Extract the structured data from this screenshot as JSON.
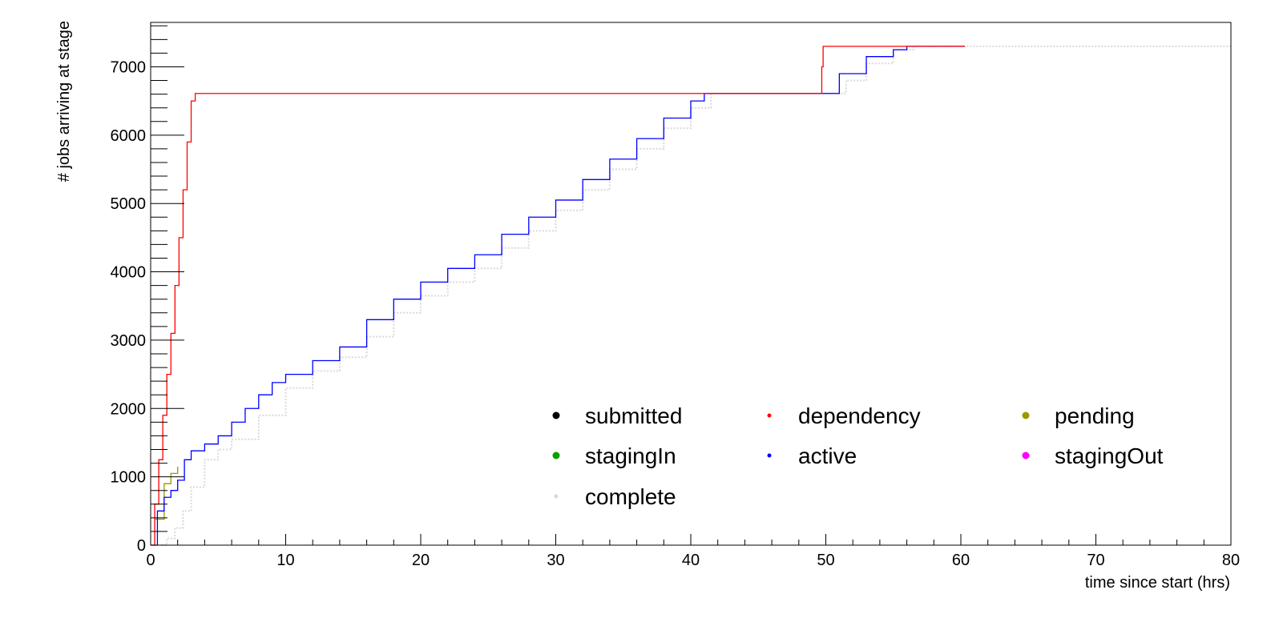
{
  "chart_data": {
    "type": "line",
    "title": "",
    "xlabel": "time since start (hrs)",
    "ylabel": "# jobs arriving at stage",
    "xlim": [
      0,
      80
    ],
    "ylim": [
      0,
      7650
    ],
    "x_ticks": [
      0,
      10,
      20,
      30,
      40,
      50,
      60,
      70,
      80
    ],
    "y_ticks": [
      0,
      1000,
      2000,
      3000,
      4000,
      5000,
      6000,
      7000
    ],
    "grid": false,
    "legend_position": "bottom-right inside plot, 3 columns",
    "series": [
      {
        "name": "submitted",
        "color": "#000000",
        "marker": "dot",
        "x": [],
        "y": []
      },
      {
        "name": "dependency",
        "color": "#ff0000",
        "marker": "dot",
        "x": [
          0,
          0.3,
          0.6,
          0.9,
          1.2,
          1.5,
          1.8,
          2.1,
          2.4,
          2.7,
          3.0,
          3.3,
          49.4,
          49.7,
          49.8,
          60.3
        ],
        "y": [
          0,
          600,
          1250,
          1900,
          2500,
          3100,
          3800,
          4500,
          5200,
          5900,
          6500,
          6610,
          6610,
          7000,
          7300,
          7300
        ]
      },
      {
        "name": "pending",
        "color": "#999900",
        "marker": "dot",
        "x": [
          0.3,
          1.0,
          1.5,
          2.0
        ],
        "y": [
          380,
          900,
          1050,
          1150
        ]
      },
      {
        "name": "stagingIn",
        "color": "#00a000",
        "marker": "dot",
        "x": [],
        "y": []
      },
      {
        "name": "active",
        "color": "#0000ff",
        "marker": "dot",
        "x": [
          0,
          0.5,
          1.0,
          1.5,
          2.0,
          2.5,
          3.0,
          4.0,
          5.0,
          6.0,
          7.0,
          8.0,
          9.0,
          10.0,
          12.0,
          14.0,
          16.0,
          18.0,
          20.0,
          22.0,
          24.0,
          26.0,
          28.0,
          30.0,
          32.0,
          34.0,
          36.0,
          38.0,
          40.0,
          41.0,
          45.0,
          49.5,
          51.0,
          53.0,
          55.0,
          56.0,
          60.3
        ],
        "y": [
          0,
          500,
          700,
          800,
          950,
          1250,
          1380,
          1480,
          1600,
          1800,
          2000,
          2200,
          2380,
          2500,
          2700,
          2900,
          3300,
          3600,
          3850,
          4050,
          4250,
          4550,
          4800,
          5050,
          5350,
          5650,
          5950,
          6250,
          6500,
          6610,
          6610,
          6610,
          6900,
          7150,
          7250,
          7300,
          7300
        ]
      },
      {
        "name": "stagingOut",
        "color": "#ff00ff",
        "marker": "dot",
        "x": [],
        "y": []
      },
      {
        "name": "complete",
        "color": "#d9d9d9",
        "marker": "dot",
        "x": [
          0.8,
          1.2,
          1.8,
          2.4,
          3.0,
          4.0,
          5.0,
          6.0,
          8.0,
          10.0,
          12.0,
          14.0,
          16.0,
          18.0,
          20.0,
          22.0,
          24.0,
          26.0,
          28.0,
          30.0,
          32.0,
          34.0,
          36.0,
          38.0,
          40.0,
          41.5,
          45.0,
          50.0,
          51.5,
          53.0,
          55.0,
          56.5,
          80.0
        ],
        "y": [
          0,
          100,
          250,
          500,
          850,
          1250,
          1400,
          1550,
          1900,
          2300,
          2550,
          2750,
          3050,
          3400,
          3650,
          3850,
          4050,
          4350,
          4600,
          4900,
          5200,
          5500,
          5800,
          6100,
          6400,
          6610,
          6610,
          6610,
          6800,
          7050,
          7250,
          7300,
          7300
        ]
      }
    ]
  }
}
